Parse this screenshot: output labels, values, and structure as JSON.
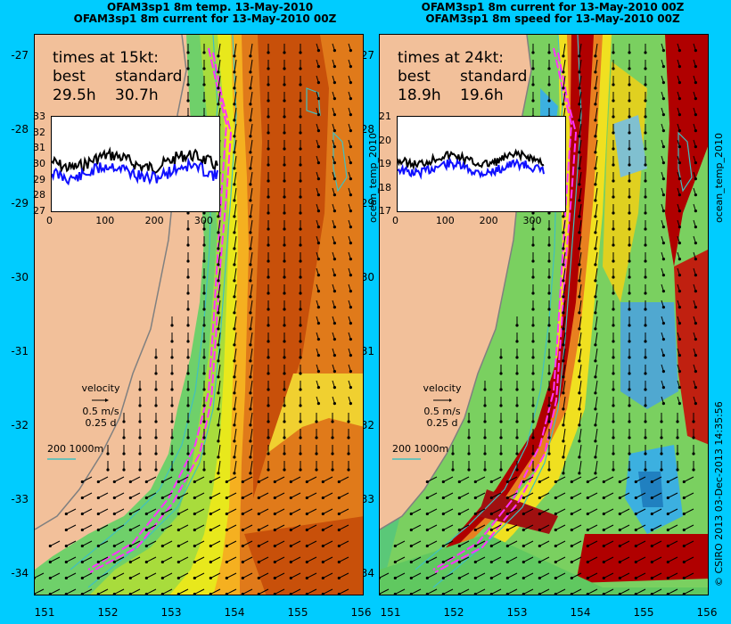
{
  "left": {
    "title1": "OFAM3sp1 8m temp. 13-May-2010",
    "title2": "OFAM3sp1 8m current for 13-May-2010 00Z",
    "times_heading": "times at 15kt:",
    "best_label": "best",
    "standard_label": "standard",
    "best_value": "29.5h",
    "standard_value": "30.7h",
    "inset_y_ticks": [
      "33",
      "32",
      "31",
      "30",
      "29",
      "28",
      "27"
    ],
    "inset_x_ticks": [
      "0",
      "100",
      "200",
      "300"
    ],
    "side_label": "ocean_temp_2010"
  },
  "right": {
    "title1": "OFAM3sp1 8m current for 13-May-2010 00Z",
    "title2": "OFAM3sp1 8m speed for 13-May-2010 00Z",
    "times_heading": "times at 24kt:",
    "best_label": "best",
    "standard_label": "standard",
    "best_value": "18.9h",
    "standard_value": "19.6h",
    "inset_y_ticks": [
      "21",
      "20",
      "19",
      "18",
      "17"
    ],
    "inset_x_ticks": [
      "0",
      "100",
      "200",
      "300"
    ],
    "side_label": "ocean_temp_2010"
  },
  "y_ticks": [
    "-27",
    "-28",
    "-29",
    "-30",
    "-31",
    "-32",
    "-33",
    "-34"
  ],
  "x_ticks": [
    "151",
    "152",
    "153",
    "154",
    "155",
    "156"
  ],
  "velocity": {
    "label": "velocity",
    "speed": "0.5 m/s",
    "time": "0.25 d"
  },
  "scale_label": "200  1000m",
  "credit": "© CSIRO 2013   03-Dec-2013 14:35:56",
  "colors": {
    "frame": "#00ccff",
    "land": "#f2c09a",
    "route": "#ff33ff",
    "contour": "#40c0c0",
    "best_line": "#000000",
    "standard_line": "#1010ff"
  }
}
